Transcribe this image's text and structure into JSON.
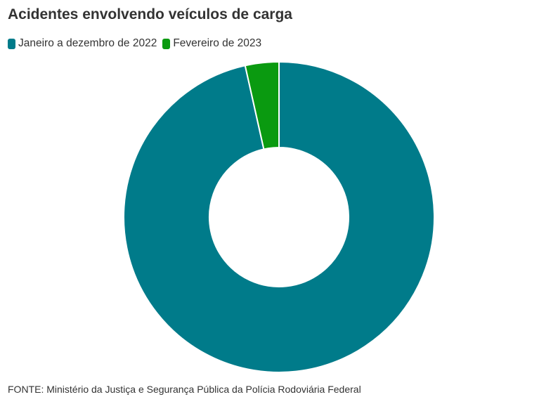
{
  "chart_data": {
    "type": "pie",
    "variant": "donut",
    "title": "Acidentes envolvendo veículos de carga",
    "source": "FONTE: Ministério da Justiça e Segurança Pública da Polícia Rodoviária Federal",
    "legend_position": "top-left",
    "categories": [
      "Janeiro a dezembro de 2022",
      "Fevereiro de 2023"
    ],
    "values": [
      96.5,
      3.5
    ],
    "colors": [
      "#007b8a",
      "#0a9a10"
    ]
  }
}
